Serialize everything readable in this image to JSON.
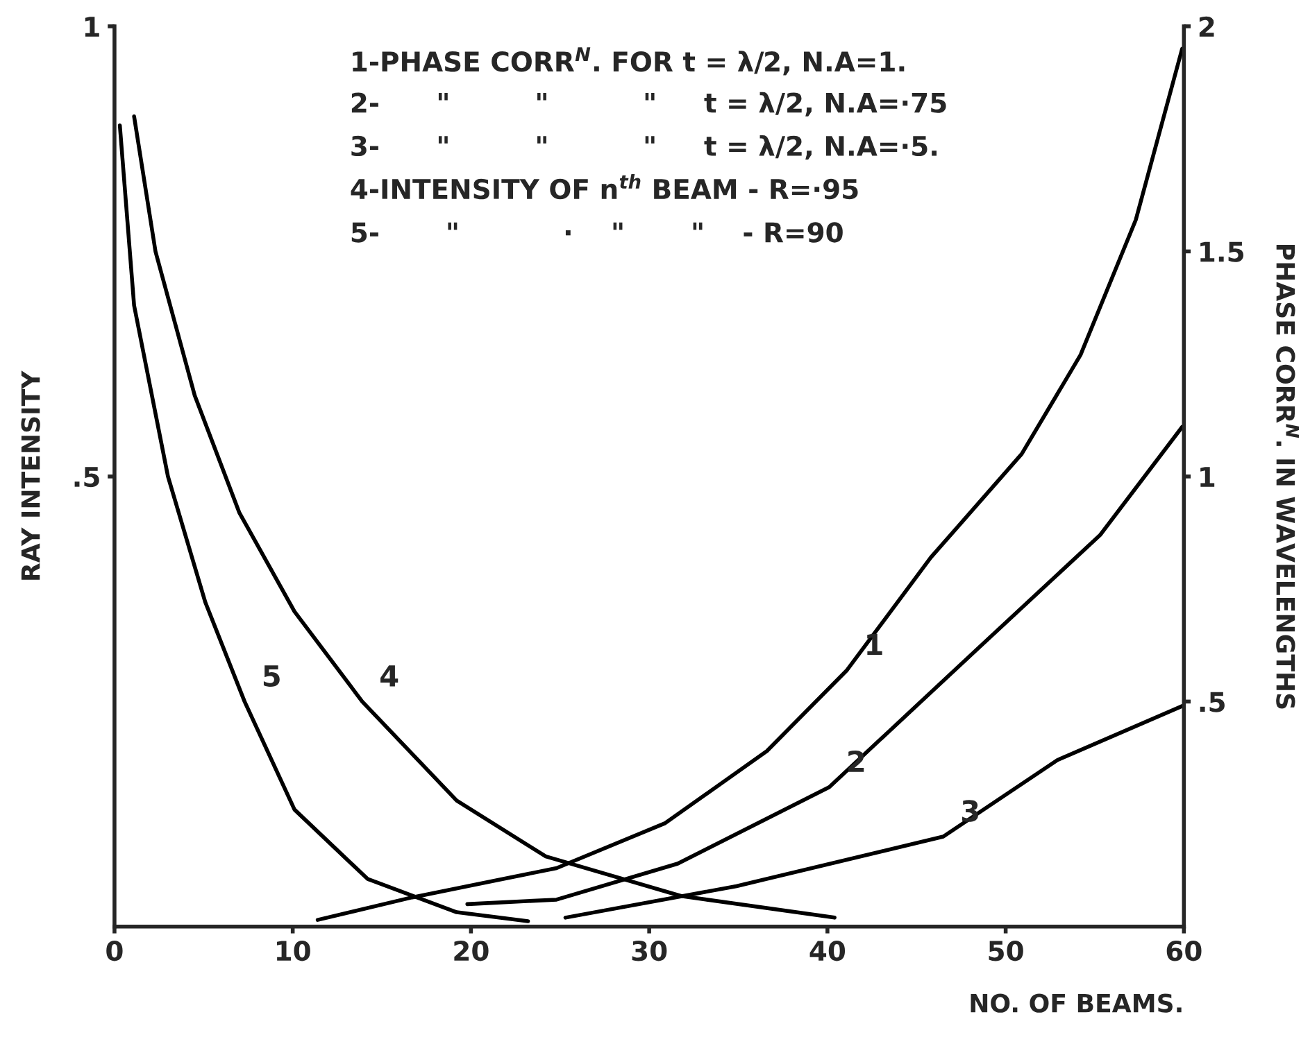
{
  "chart_data": {
    "type": "line",
    "xlabel": "NO. OF BEAMS.",
    "ylabel": "RAY INTENSITY",
    "y2label": "PHASE CORR$^{N}$. IN WAVELENGTHS",
    "annotations": [
      "1-PHASE CORR$^{N}$. FOR t = λ/2, N.A=1.",
      "2-      \"         \"          \"     t = λ/2, N.A=·75",
      "3-      \"         \"          \"     t = λ/2, N.A=·5.",
      "4-INTENSITY OF n$^{th}$ BEAM - R=·95",
      "5-       \"           ·    \"       \"    - R=90"
    ],
    "xlim": [
      0,
      60
    ],
    "xticks": [
      0,
      10,
      20,
      30,
      40,
      50,
      60
    ],
    "ylim": [
      0,
      1
    ],
    "yticks": [
      {
        "value": 0.5,
        "label": ".5"
      },
      1
    ],
    "y2lim": [
      0,
      2
    ],
    "y2ticks": [
      {
        "value": 0.5,
        "label": ".5"
      },
      1,
      1.5,
      2
    ],
    "grid": false,
    "legend": false,
    "marker": "none",
    "line_style": "solid",
    "series": [
      {
        "name": "1",
        "color": "#000000",
        "axis": "y2",
        "x": [
          11.4,
          16.7,
          24.8,
          30.9,
          36.6,
          41.1,
          45.8,
          50.9,
          54.2,
          57.3,
          59.9
        ],
        "values": [
          0.015,
          0.065,
          0.13,
          0.23,
          0.39,
          0.57,
          0.82,
          1.05,
          1.27,
          1.57,
          1.95
        ]
      },
      {
        "name": "2",
        "color": "#000000",
        "axis": "y2",
        "x": [
          19.8,
          24.8,
          31.6,
          40.1,
          48.5,
          55.3,
          59.9
        ],
        "values": [
          0.05,
          0.06,
          0.14,
          0.31,
          0.62,
          0.87,
          1.11
        ]
      },
      {
        "name": "3",
        "color": "#000000",
        "axis": "y2",
        "x": [
          25.3,
          34.9,
          46.5,
          52.9,
          59.9
        ],
        "values": [
          0.02,
          0.09,
          0.2,
          0.37,
          0.49
        ]
      },
      {
        "name": "4",
        "color": "#000000",
        "x": [
          1.1,
          2.3,
          4.5,
          7.0,
          10.1,
          13.9,
          19.2,
          24.2,
          31.8,
          40.4
        ],
        "values": [
          0.9,
          0.75,
          0.59,
          0.46,
          0.35,
          0.25,
          0.14,
          0.078,
          0.034,
          0.01
        ]
      },
      {
        "name": "5",
        "color": "#000000",
        "x": [
          0.3,
          1.1,
          3.0,
          5.1,
          7.3,
          10.1,
          14.2,
          19.2,
          23.2
        ],
        "values": [
          0.89,
          0.69,
          0.5,
          0.36,
          0.25,
          0.13,
          0.053,
          0.016,
          0.006
        ]
      }
    ]
  }
}
